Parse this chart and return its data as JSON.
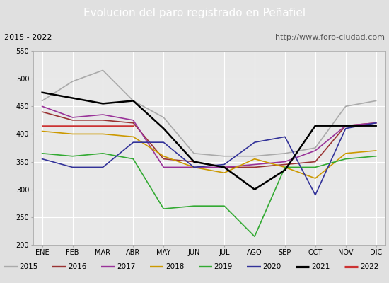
{
  "title": "Evolucion del paro registrado en Peñafiel",
  "subtitle_left": "2015 - 2022",
  "subtitle_right": "http://www.foro-ciudad.com",
  "months": [
    "ENE",
    "FEB",
    "MAR",
    "ABR",
    "MAY",
    "JUN",
    "JUL",
    "AGO",
    "SEP",
    "OCT",
    "NOV",
    "DIC"
  ],
  "ylim": [
    200,
    550
  ],
  "yticks": [
    200,
    250,
    300,
    350,
    400,
    450,
    500,
    550
  ],
  "series": {
    "2015": {
      "color": "#aaaaaa",
      "linewidth": 1.2,
      "values": [
        460,
        495,
        515,
        460,
        430,
        365,
        360,
        360,
        365,
        375,
        450,
        460
      ]
    },
    "2016": {
      "color": "#993333",
      "linewidth": 1.2,
      "values": [
        440,
        425,
        425,
        420,
        355,
        350,
        340,
        340,
        345,
        350,
        415,
        420
      ]
    },
    "2017": {
      "color": "#993399",
      "linewidth": 1.2,
      "values": [
        450,
        430,
        435,
        425,
        340,
        340,
        340,
        345,
        350,
        370,
        415,
        420
      ]
    },
    "2018": {
      "color": "#cc9900",
      "linewidth": 1.2,
      "values": [
        405,
        400,
        400,
        395,
        360,
        340,
        330,
        355,
        340,
        320,
        365,
        370
      ]
    },
    "2019": {
      "color": "#33aa33",
      "linewidth": 1.2,
      "values": [
        365,
        360,
        365,
        355,
        265,
        270,
        270,
        215,
        340,
        340,
        355,
        360
      ]
    },
    "2020": {
      "color": "#333399",
      "linewidth": 1.2,
      "values": [
        355,
        340,
        340,
        385,
        385,
        340,
        345,
        385,
        395,
        290,
        410,
        420
      ]
    },
    "2021": {
      "color": "#000000",
      "linewidth": 1.8,
      "values": [
        475,
        465,
        455,
        460,
        410,
        350,
        340,
        300,
        335,
        415,
        415,
        415
      ]
    },
    "2022": {
      "color": "#cc3333",
      "linewidth": 1.8,
      "values": [
        415,
        415,
        415,
        415,
        null,
        null,
        null,
        null,
        null,
        null,
        null,
        null
      ]
    }
  },
  "title_bg_color": "#4a90d9",
  "subtitle_bg_color": "#f5f5f5",
  "chart_bg_color": "#e8e8e8",
  "grid_color": "#ffffff",
  "title_color": "#ffffff",
  "border_color": "#aaaaaa",
  "title_fontsize": 11,
  "subtitle_fontsize": 8,
  "tick_fontsize": 7,
  "legend_fontsize": 7.5
}
